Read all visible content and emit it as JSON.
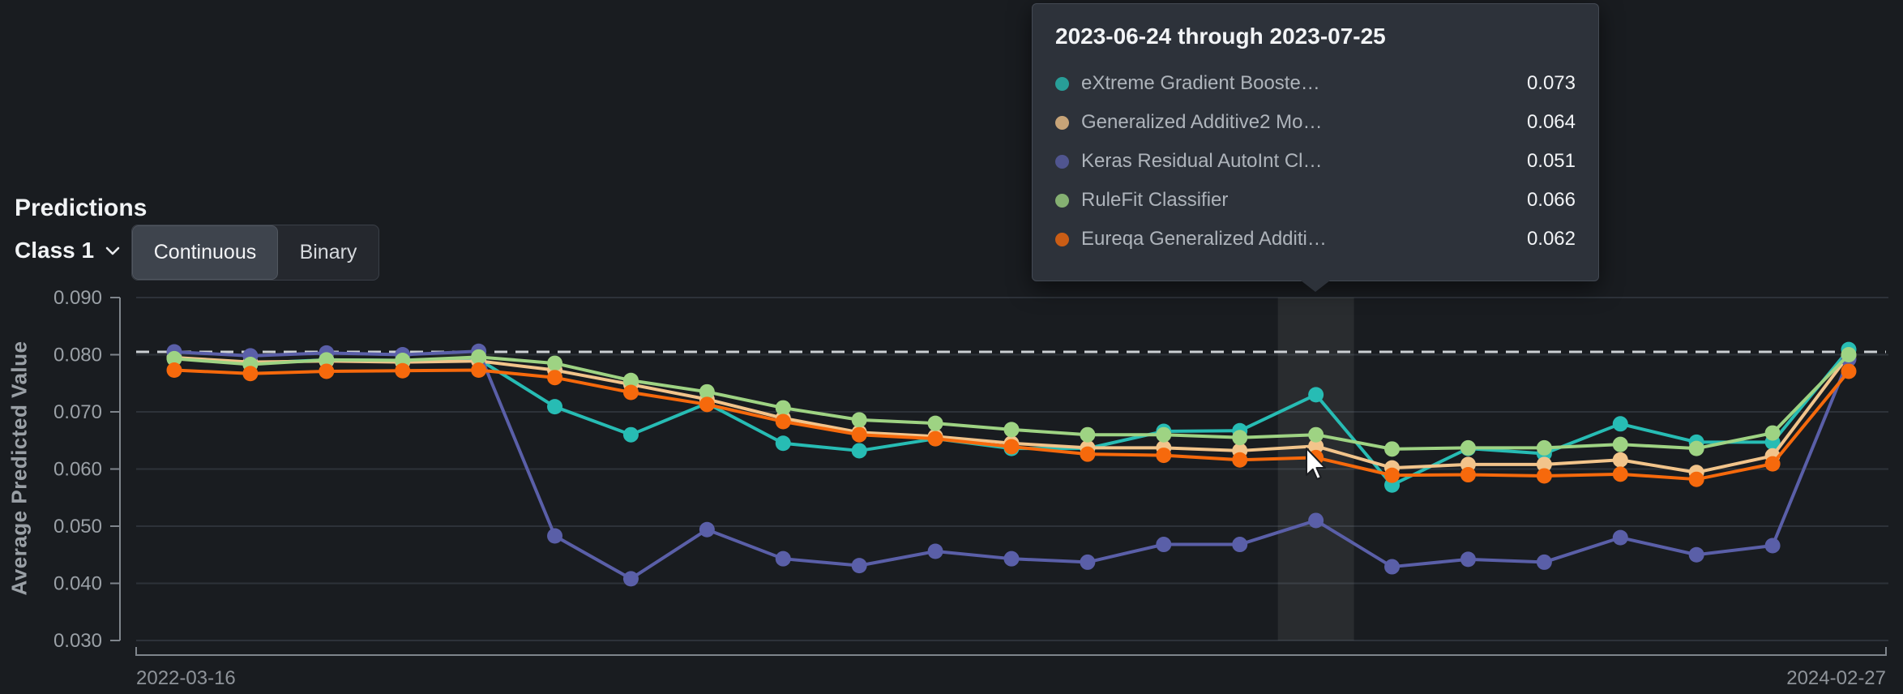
{
  "header": {
    "title": "Predictions",
    "class_selector": {
      "label": "Class 1"
    },
    "toggle": {
      "continuous": "Continuous",
      "binary": "Binary",
      "selected": "Continuous"
    }
  },
  "tooltip": {
    "title": "2023-06-24 through 2023-07-25",
    "rows": [
      {
        "label": "eXtreme Gradient Booste…",
        "value": "0.073",
        "color": "#27bcb4"
      },
      {
        "label": "Generalized Additive2 Mo…",
        "value": "0.064",
        "color": "#f2c48b"
      },
      {
        "label": "Keras Residual AutoInt Cl…",
        "value": "0.051",
        "color": "#5a5fa8"
      },
      {
        "label": "RuleFit Classifier",
        "value": "0.066",
        "color": "#9ed383"
      },
      {
        "label": "Eureqa Generalized Additi…",
        "value": "0.062",
        "color": "#f6690c"
      }
    ]
  },
  "chart_data": {
    "type": "line",
    "title": "Predictions",
    "ylabel": "Average Predicted Value",
    "ylim": [
      0.03,
      0.09
    ],
    "y_ticks": [
      0.09,
      0.08,
      0.07,
      0.06,
      0.05,
      0.04,
      0.03
    ],
    "x_start_label": "2022-03-16",
    "x_end_label": "2024-02-27",
    "grid": true,
    "threshold": 0.0805,
    "threshold_color": "#ccd0d4",
    "hover_index": 15,
    "hovered_bin_label": "2023-06-24 through 2023-07-25",
    "series": [
      {
        "name": "eXtreme Gradient Booste…",
        "color": "#27bcb4",
        "values": [
          0.0795,
          0.0785,
          0.0791,
          0.079,
          0.0792,
          0.0709,
          0.066,
          0.0715,
          0.0645,
          0.0632,
          0.0653,
          0.0636,
          0.0636,
          0.0666,
          0.0667,
          0.073,
          0.0572,
          0.0636,
          0.0627,
          0.0679,
          0.0647,
          0.0647,
          0.0809
        ]
      },
      {
        "name": "Generalized Additive2 Mo…",
        "color": "#f2c48b",
        "values": [
          0.0795,
          0.0787,
          0.0789,
          0.0787,
          0.0789,
          0.0773,
          0.0748,
          0.0722,
          0.0689,
          0.0664,
          0.0657,
          0.0645,
          0.0637,
          0.0637,
          0.0632,
          0.064,
          0.0602,
          0.0608,
          0.0608,
          0.0616,
          0.0594,
          0.0623,
          0.0799
        ]
      },
      {
        "name": "Keras Residual AutoInt Cl…",
        "color": "#5a5fa8",
        "values": [
          0.0805,
          0.0798,
          0.0803,
          0.08,
          0.0806,
          0.0483,
          0.0408,
          0.0494,
          0.0443,
          0.0431,
          0.0456,
          0.0443,
          0.0437,
          0.0468,
          0.0468,
          0.051,
          0.0429,
          0.0442,
          0.0437,
          0.048,
          0.045,
          0.0466,
          0.0792
        ]
      },
      {
        "name": "RuleFit Classifier",
        "color": "#9ed383",
        "values": [
          0.0793,
          0.0783,
          0.0791,
          0.079,
          0.0796,
          0.0785,
          0.0755,
          0.0735,
          0.0707,
          0.0686,
          0.068,
          0.0669,
          0.066,
          0.066,
          0.0655,
          0.066,
          0.0635,
          0.0637,
          0.0637,
          0.0643,
          0.0636,
          0.0663,
          0.08
        ]
      },
      {
        "name": "Eureqa Generalized Additi…",
        "color": "#f6690c",
        "values": [
          0.0773,
          0.0767,
          0.0771,
          0.0772,
          0.0773,
          0.076,
          0.0734,
          0.0713,
          0.0683,
          0.066,
          0.0653,
          0.0639,
          0.0626,
          0.0624,
          0.0616,
          0.062,
          0.0589,
          0.059,
          0.0588,
          0.0591,
          0.0582,
          0.0609,
          0.0771
        ]
      }
    ]
  }
}
